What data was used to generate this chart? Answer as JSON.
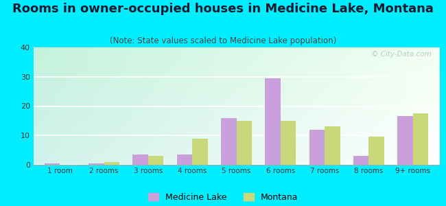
{
  "title": "Rooms in owner-occupied houses in Medicine Lake, Montana",
  "subtitle": "(Note: State values scaled to Medicine Lake population)",
  "categories": [
    "1 room",
    "2 rooms",
    "3 rooms",
    "4 rooms",
    "5 rooms",
    "6 rooms",
    "7 rooms",
    "8 rooms",
    "9+ rooms"
  ],
  "medicine_lake": [
    0.5,
    0.5,
    3.5,
    3.5,
    16.0,
    29.5,
    12.0,
    3.0,
    16.5
  ],
  "montana": [
    0.0,
    1.0,
    3.0,
    9.0,
    15.0,
    15.0,
    13.0,
    9.5,
    17.5
  ],
  "medicine_lake_color": "#c9a0dc",
  "montana_color": "#c8d87a",
  "ylim": [
    0,
    40
  ],
  "yticks": [
    0,
    10,
    20,
    30,
    40
  ],
  "bg_outer": "#00eeff",
  "title_fontsize": 13,
  "subtitle_fontsize": 8.5,
  "bar_width": 0.35
}
